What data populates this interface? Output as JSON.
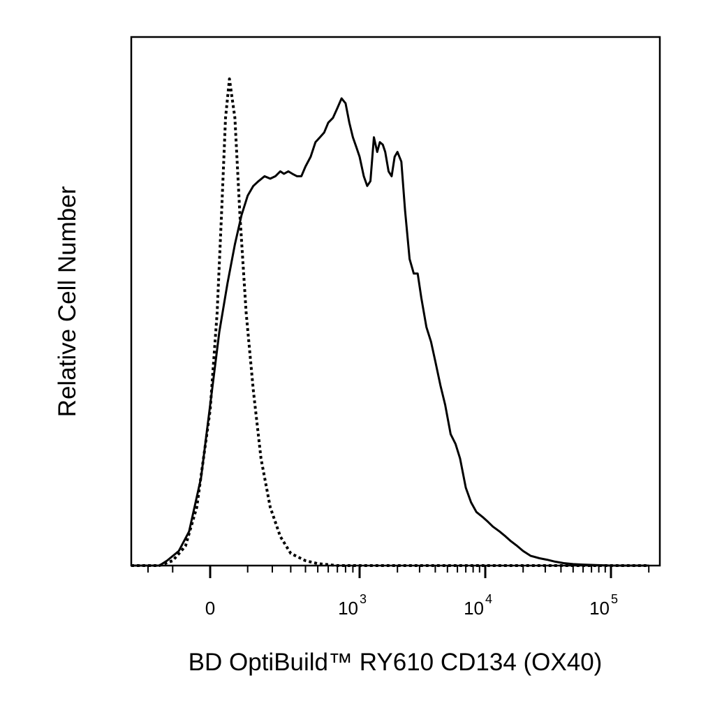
{
  "chart_data": {
    "type": "line",
    "title": "",
    "xlabel": "BD OptiBuild™ RY610 CD134 (OX40)",
    "ylabel": "Relative Cell Number",
    "x_scale": "biexponential",
    "xlim": [
      -300,
      200000
    ],
    "ylim": [
      0,
      100
    ],
    "grid": false,
    "legend": "none",
    "ticks": [
      {
        "value": 0,
        "base": "0",
        "exp": ""
      },
      {
        "value": 1000,
        "base": "10",
        "exp": "3"
      },
      {
        "value": 10000,
        "base": "10",
        "exp": "4"
      },
      {
        "value": 100000,
        "base": "10",
        "exp": "5"
      }
    ],
    "series": [
      {
        "style": "dotted",
        "color": "#000000",
        "x": [
          -300,
          -150,
          -100,
          -60,
          -30,
          0,
          15,
          25,
          35,
          45,
          60,
          75,
          95,
          120,
          150,
          190,
          240,
          300,
          400,
          500,
          700,
          1000,
          3000,
          10000,
          30000,
          200000
        ],
        "y": [
          0,
          0,
          1,
          4,
          12,
          32,
          52,
          72,
          92,
          100,
          92,
          72,
          52,
          36,
          22,
          12,
          6,
          2.5,
          1,
          0.4,
          0,
          0,
          0,
          0,
          0,
          0
        ]
      },
      {
        "style": "solid",
        "color": "#000000",
        "x": [
          -300,
          -150,
          -120,
          -80,
          -50,
          -20,
          0,
          20,
          40,
          60,
          80,
          100,
          120,
          140,
          165,
          190,
          215,
          240,
          260,
          285,
          310,
          340,
          370,
          400,
          440,
          480,
          520,
          560,
          600,
          650,
          700,
          750,
          800,
          850,
          900,
          950,
          1000,
          1080,
          1150,
          1220,
          1300,
          1380,
          1450,
          1530,
          1600,
          1700,
          1800,
          1900,
          2000,
          2150,
          2300,
          2500,
          2700,
          2900,
          3100,
          3400,
          3700,
          4000,
          4400,
          4800,
          5300,
          5800,
          6300,
          7000,
          7700,
          8500,
          9500,
          10500,
          11500,
          13000,
          14500,
          16000,
          18000,
          20000,
          23000,
          27000,
          31000,
          36000,
          42000,
          50000,
          60000,
          75000,
          100000,
          200000
        ],
        "y": [
          0,
          0,
          1,
          3,
          7,
          18,
          33,
          48,
          58,
          66,
          72,
          76,
          78,
          79,
          80,
          79.5,
          80,
          81,
          80.5,
          81,
          80.5,
          80,
          80,
          82,
          84,
          87,
          88,
          89,
          91,
          92,
          94,
          96,
          95,
          91,
          88,
          86,
          84,
          80,
          78,
          79,
          88,
          85,
          87,
          86.5,
          85,
          81,
          80,
          84,
          85,
          83,
          73,
          63,
          60,
          60,
          55,
          49,
          46,
          42,
          37,
          33,
          27,
          25,
          22,
          16,
          13,
          11,
          10,
          9,
          8,
          7,
          6,
          5,
          4,
          3,
          2,
          1.5,
          1.2,
          0.8,
          0.5,
          0.3,
          0.2,
          0.1,
          0,
          0
        ]
      }
    ]
  }
}
